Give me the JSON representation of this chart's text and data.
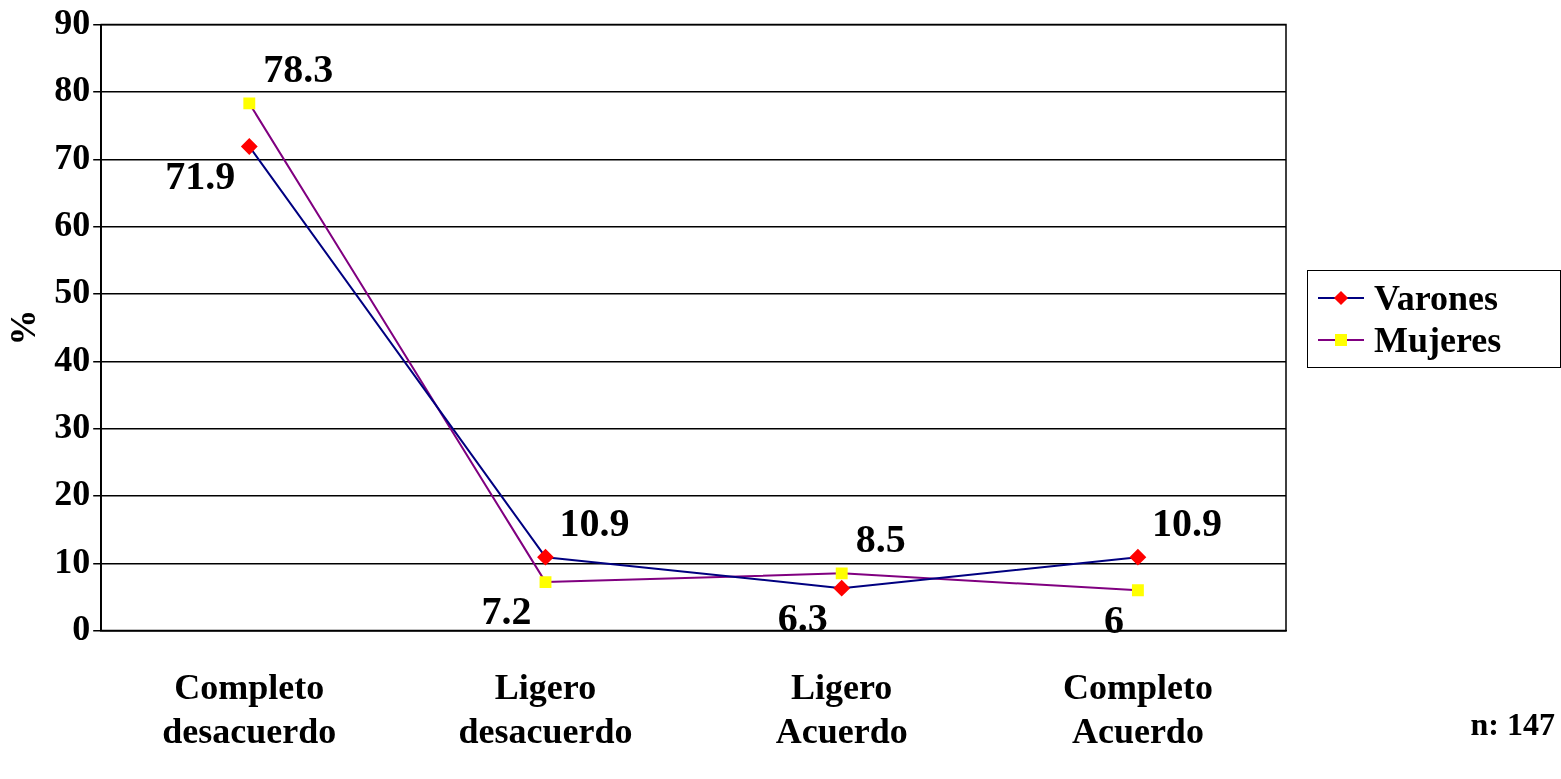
{
  "chart_data": {
    "type": "line",
    "ylabel": "%",
    "categories": [
      "Completo desacuerdo",
      "Ligero desacuerdo",
      "Ligero Acuerdo",
      "Completo Acuerdo"
    ],
    "series": [
      {
        "name": "Varones",
        "color": "#000080",
        "colors": [
          "#ff0000",
          "#ff0000",
          "#ff0000",
          "#ff0000"
        ],
        "marker": "diamond",
        "values": [
          71.9,
          10.9,
          6.3,
          10.9
        ]
      },
      {
        "name": "Mujeres",
        "color": "#800080",
        "colors": [
          "#ffff00",
          "#ffff00",
          "#ffff00",
          "#ffff00"
        ],
        "marker": "square",
        "values": [
          78.3,
          7.2,
          8.5,
          6
        ]
      }
    ],
    "ylim": [
      0,
      90
    ],
    "yticks": [
      0,
      10,
      20,
      30,
      40,
      50,
      60,
      70,
      80,
      90
    ],
    "grid": "y",
    "legend": "right",
    "data_labels": true,
    "line_style": "solid",
    "annotations": [
      "n: 147"
    ]
  }
}
